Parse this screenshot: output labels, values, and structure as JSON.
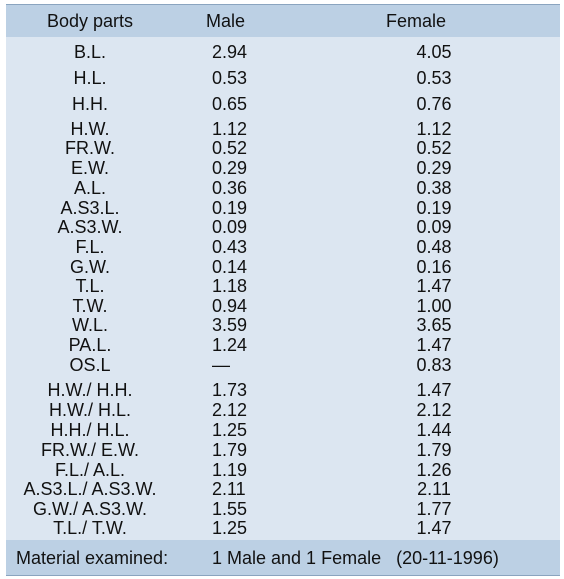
{
  "headers": {
    "body_parts": "Body parts",
    "male": "Male",
    "female": "Female"
  },
  "rows": [
    {
      "part": "B.L.",
      "male": "2.94",
      "female": "4.05"
    },
    {
      "part": "H.L.",
      "male": "0.53",
      "female": "0.53"
    },
    {
      "part": "H.H.",
      "male": "0.65",
      "female": "0.76"
    },
    {
      "part": "H.W.",
      "male": "1.12",
      "female": "1.12"
    },
    {
      "part": "FR.W.",
      "male": "0.52",
      "female": "0.52"
    },
    {
      "part": "E.W.",
      "male": "0.29",
      "female": "0.29"
    },
    {
      "part": "A.L.",
      "male": "0.36",
      "female": "0.38"
    },
    {
      "part": "A.S3.L.",
      "male": "0.19",
      "female": "0.19"
    },
    {
      "part": "A.S3.W.",
      "male": "0.09",
      "female": "0.09"
    },
    {
      "part": "F.L.",
      "male": "0.43",
      "female": "0.48"
    },
    {
      "part": "G.W.",
      "male": "0.14",
      "female": "0.16"
    },
    {
      "part": "T.L.",
      "male": "1.18",
      "female": "1.47"
    },
    {
      "part": "T.W.",
      "male": "0.94",
      "female": "1.00"
    },
    {
      "part": "W.L.",
      "male": "3.59",
      "female": "3.65"
    },
    {
      "part": "PA.L.",
      "male": "1.24",
      "female": "1.47"
    },
    {
      "part": "OS.L",
      "male": "—",
      "female": "0.83"
    },
    {
      "part": "H.W./ H.H.",
      "male": "1.73",
      "female": "1.47"
    },
    {
      "part": "H.W./ H.L.",
      "male": "2.12",
      "female": "2.12"
    },
    {
      "part": "H.H./ H.L.",
      "male": "1.25",
      "female": "1.44"
    },
    {
      "part": "FR.W./ E.W.",
      "male": "1.79",
      "female": "1.79"
    },
    {
      "part": "F.L./ A.L.",
      "male": "1.19",
      "female": "1.26"
    },
    {
      "part": "A.S3.L./ A.S3.W.",
      "male": "2.11",
      "female": "2.11"
    },
    {
      "part": "G.W./ A.S3.W.",
      "male": "1.55",
      "female": "1.77"
    },
    {
      "part": "T.L./ T.W.",
      "male": "1.25",
      "female": "1.47"
    }
  ],
  "footer": {
    "label": "Material examined:",
    "value": "1 Male and 1 Female   (20-11-1996)"
  }
}
